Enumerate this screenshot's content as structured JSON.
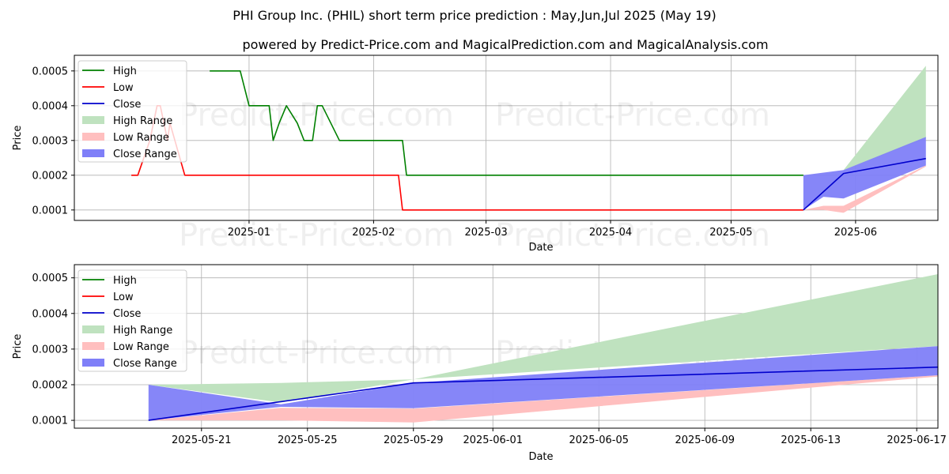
{
  "title": "PHI Group Inc. (PHIL) short term price prediction : May,Jun,Jul 2025 (May 19)",
  "subtitle": "powered by Predict-Price.com and MagicalPrediction.com and MagicalAnalysis.com",
  "watermark": "Predict-Price.com",
  "colors": {
    "high": "#008000",
    "low": "#ff0000",
    "close": "#0000cc",
    "high_range": "#bfe2bf",
    "low_range": "#ffbfbf",
    "close_range": "#7f7ff8"
  },
  "legend": [
    {
      "key": "high",
      "label": "High"
    },
    {
      "key": "low",
      "label": "Low"
    },
    {
      "key": "close",
      "label": "Close"
    },
    {
      "key": "high_range",
      "label": "High Range"
    },
    {
      "key": "low_range",
      "label": "Low Range"
    },
    {
      "key": "close_range",
      "label": "Close Range"
    }
  ],
  "chart_data": [
    {
      "type": "line",
      "xlabel": "Date",
      "ylabel": "Price",
      "legend_position": "top-left",
      "grid": true,
      "x_unit": "days since 2024-12-01",
      "xlim": [
        -12.5,
        202.5
      ],
      "ylim": [
        7e-05,
        0.000545
      ],
      "xticks": [
        {
          "x": 31,
          "label": "2025-01"
        },
        {
          "x": 62,
          "label": "2025-02"
        },
        {
          "x": 90,
          "label": "2025-03"
        },
        {
          "x": 121,
          "label": "2025-04"
        },
        {
          "x": 151,
          "label": "2025-05"
        },
        {
          "x": 182,
          "label": "2025-06"
        }
      ],
      "yticks": [
        {
          "y": 0.0001,
          "label": "0.0001"
        },
        {
          "y": 0.0002,
          "label": "0.0002"
        },
        {
          "y": 0.0003,
          "label": "0.0003"
        },
        {
          "y": 0.0004,
          "label": "0.0004"
        },
        {
          "y": 0.0005,
          "label": "0.0005"
        }
      ],
      "series": [
        {
          "key": "high",
          "name": "High",
          "points": [
            [
              21.2,
              0.0005
            ],
            [
              28.8,
              0.0005
            ],
            [
              31,
              0.0004
            ],
            [
              36,
              0.0004
            ],
            [
              37,
              0.0003
            ],
            [
              38.5,
              0.00035
            ],
            [
              40.3,
              0.0004
            ],
            [
              43,
              0.00035
            ],
            [
              44.7,
              0.0003
            ],
            [
              46.8,
              0.0003
            ],
            [
              48,
              0.0004
            ],
            [
              49.2,
              0.0004
            ],
            [
              53.5,
              0.0003
            ],
            [
              69.2,
              0.0003
            ],
            [
              70.2,
              0.0002
            ],
            [
              169,
              0.0002
            ]
          ]
        },
        {
          "key": "high",
          "name": "High (early)",
          "points": [
            [
              1.7,
              0.0002
            ],
            [
              3.3,
              0.0002
            ],
            [
              6.3,
              0.0003
            ],
            [
              8.1,
              0.0004
            ],
            [
              8.9,
              0.0004
            ]
          ],
          "opacity": 0.3
        },
        {
          "key": "low",
          "name": "Low",
          "points": [
            [
              1.7,
              0.0002
            ],
            [
              3.3,
              0.0002
            ],
            [
              6.3,
              0.0003
            ],
            [
              8.1,
              0.0004
            ],
            [
              8.9,
              0.0004
            ],
            [
              10.7,
              0.0003
            ],
            [
              11.3,
              0.00035
            ],
            [
              15,
              0.0002
            ],
            [
              68.2,
              0.0002
            ],
            [
              69.2,
              0.0001
            ],
            [
              169,
              0.0001
            ]
          ]
        },
        {
          "key": "close",
          "name": "Close",
          "points": [
            [
              169,
              0.0001
            ],
            [
              179,
              0.000205
            ],
            [
              199.5,
              0.000248
            ]
          ]
        }
      ],
      "bands": [
        {
          "key": "high_range",
          "name": "High Range",
          "upper": [
            [
              169,
              0.0002
            ],
            [
              179,
              0.000215
            ],
            [
              199.5,
              0.000515
            ]
          ],
          "lower": [
            [
              169,
              0.0002
            ],
            [
              179,
              0.000215
            ],
            [
              199.5,
              0.000305
            ]
          ]
        },
        {
          "key": "low_range",
          "name": "Low Range",
          "upper": [
            [
              169,
              0.0001
            ],
            [
              174,
              0.000112
            ],
            [
              179,
              0.000112
            ],
            [
              199.5,
              0.000228
            ]
          ],
          "lower": [
            [
              169,
              0.0001
            ],
            [
              174,
              0.0001
            ],
            [
              179,
              9.2e-05
            ],
            [
              199.5,
              0.000225
            ]
          ]
        },
        {
          "key": "close_range",
          "name": "Close Range",
          "upper": [
            [
              169,
              0.0002
            ],
            [
              179,
              0.000215
            ],
            [
              199.5,
              0.00031
            ]
          ],
          "lower": [
            [
              169,
              0.0001
            ],
            [
              174,
              0.000138
            ],
            [
              179,
              0.000133
            ],
            [
              199.5,
              0.000228
            ]
          ]
        }
      ]
    },
    {
      "type": "line",
      "xlabel": "Date",
      "ylabel": "Price",
      "legend_position": "top-left",
      "grid": true,
      "x_unit": "days since 2025-05-01",
      "xlim": [
        16.2,
        48.8
      ],
      "ylim": [
        7.8e-05,
        0.000537
      ],
      "xticks": [
        {
          "x": 21,
          "label": "2025-05-21"
        },
        {
          "x": 25,
          "label": "2025-05-25"
        },
        {
          "x": 29,
          "label": "2025-05-29"
        },
        {
          "x": 32,
          "label": "2025-06-01"
        },
        {
          "x": 36,
          "label": "2025-06-05"
        },
        {
          "x": 40,
          "label": "2025-06-09"
        },
        {
          "x": 44,
          "label": "2025-06-13"
        },
        {
          "x": 48,
          "label": "2025-06-17"
        }
      ],
      "yticks": [
        {
          "y": 0.0001,
          "label": "0.0001"
        },
        {
          "y": 0.0002,
          "label": "0.0002"
        },
        {
          "y": 0.0003,
          "label": "0.0003"
        },
        {
          "y": 0.0004,
          "label": "0.0004"
        },
        {
          "y": 0.0005,
          "label": "0.0005"
        }
      ],
      "series": [
        {
          "key": "close",
          "name": "Close",
          "points": [
            [
              19,
              0.0001
            ],
            [
              29,
              0.000205
            ],
            [
              49.1,
              0.00025
            ]
          ]
        }
      ],
      "bands": [
        {
          "key": "high_range",
          "name": "High Range",
          "upper": [
            [
              19,
              0.0002
            ],
            [
              24,
              0.000205
            ],
            [
              29,
              0.000215
            ],
            [
              49.1,
              0.000515
            ]
          ],
          "lower": [
            [
              19,
              0.0002
            ],
            [
              24,
              0.00015
            ],
            [
              29,
              0.000215
            ],
            [
              49.1,
              0.00031
            ]
          ]
        },
        {
          "key": "low_range",
          "name": "Low Range",
          "upper": [
            [
              19,
              0.0001
            ],
            [
              24,
              0.000135
            ],
            [
              29,
              0.000133
            ],
            [
              49.1,
              0.000228
            ]
          ],
          "lower": [
            [
              19,
              0.0001
            ],
            [
              24,
              0.0001
            ],
            [
              29,
              9.4e-05
            ],
            [
              49.1,
              0.000225
            ]
          ]
        },
        {
          "key": "close_range",
          "name": "Close Range",
          "upper": [
            [
              19,
              0.0002
            ],
            [
              24,
              0.000145
            ],
            [
              29,
              0.000205
            ],
            [
              49.1,
              0.00031
            ]
          ],
          "lower": [
            [
              19,
              0.0001
            ],
            [
              24,
              0.000138
            ],
            [
              29,
              0.000134
            ],
            [
              49.1,
              0.000228
            ]
          ]
        }
      ]
    }
  ]
}
